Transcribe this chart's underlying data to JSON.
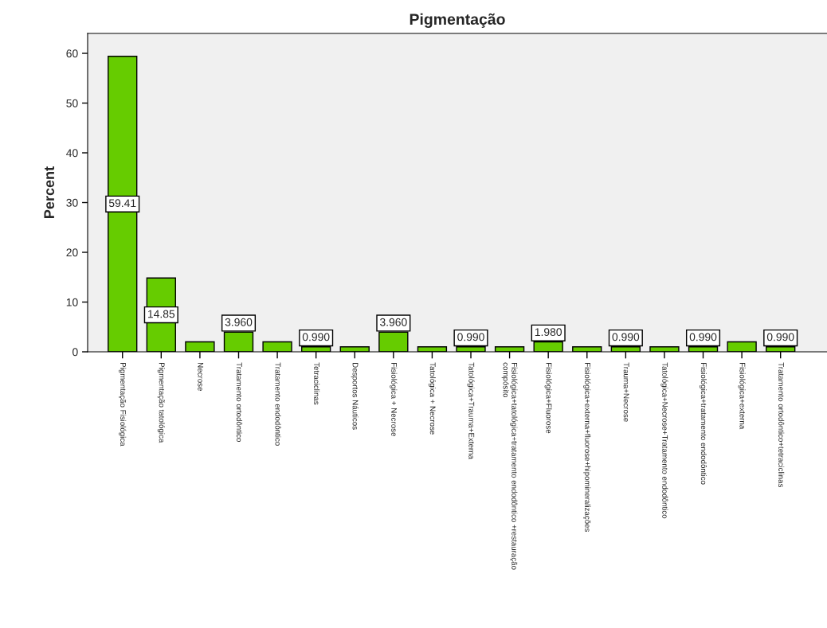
{
  "chart_data": {
    "type": "bar",
    "title": "Pigmentação",
    "ylabel": "Percent",
    "categories": [
      "Pigmentação Fisiológica",
      "Pigmentação tatológica",
      "Necrose",
      "Tratamento ortodôntico",
      "Tratamento endodôntico",
      "Tetraciclinas",
      "Desportos Náuticos",
      "Fisiológica + Necrose",
      "Tatológica + Necrose",
      "Tatológica+Trauma+Externa",
      "Fisiológica+tatológica+tratamento endodôntico +restauração\ncompósito",
      "Fisiológica+Fluorose",
      "Fisiológica+externa+fluorose+hipomineralizações",
      "Trauma+Necrose",
      "Tatológica+Necrose+Tratamento endodôntico",
      "Fisiológica+tratamento endodôntico",
      "Fisiológica+externa",
      "Tratamento ortodôntico+tetraciclinas"
    ],
    "values": [
      59.41,
      14.85,
      2,
      3.96,
      2,
      0.99,
      1,
      3.96,
      1,
      0.99,
      1,
      1.98,
      1,
      0.99,
      1,
      0.99,
      2,
      0.99
    ],
    "value_labels": [
      "59.41",
      "14.85",
      null,
      "3.960",
      null,
      "0.990",
      null,
      "3.960",
      null,
      "0.990",
      null,
      "1.980",
      null,
      "0.990",
      null,
      "0.990",
      null,
      "0.990"
    ],
    "color": "#66cc00",
    "ylim": [
      0,
      64
    ],
    "yticks": [
      0,
      10,
      20,
      30,
      40,
      50,
      60
    ],
    "grid": false
  }
}
